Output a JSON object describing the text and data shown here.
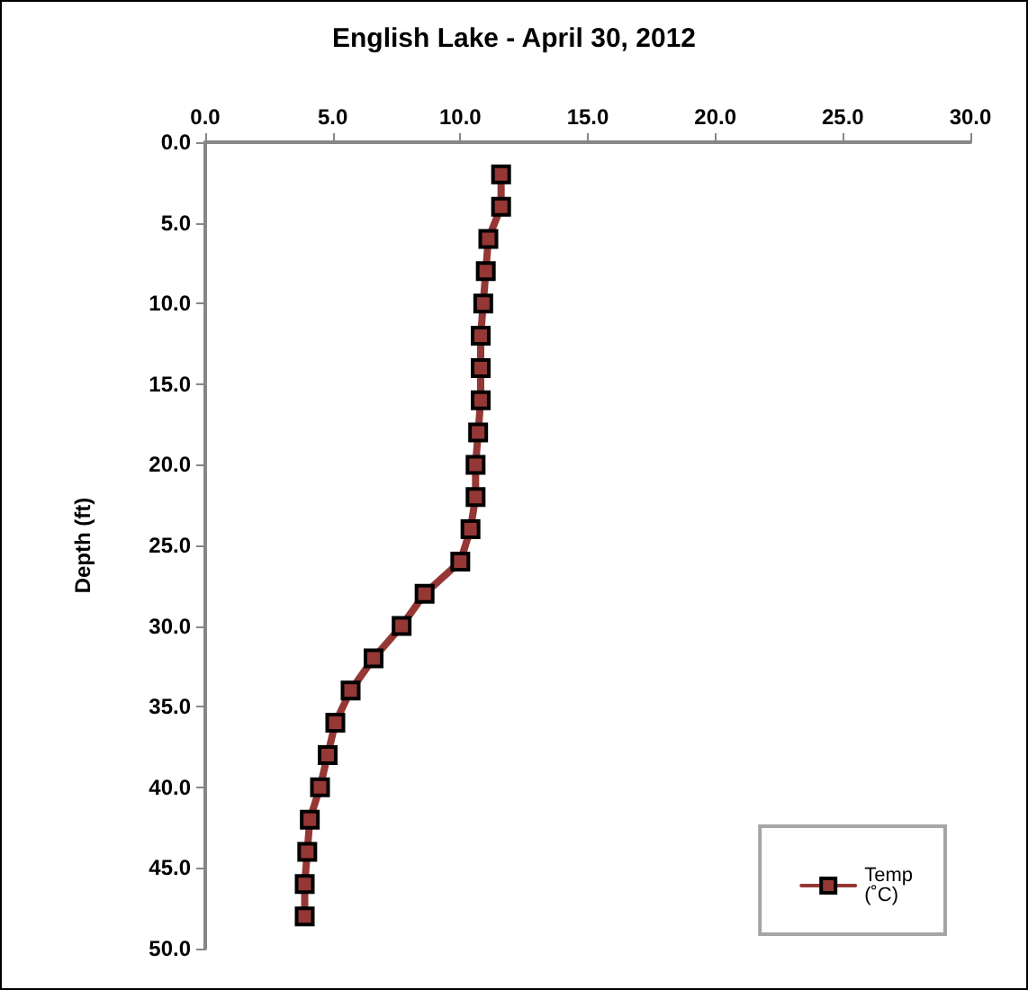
{
  "chart_data": {
    "type": "line",
    "title": "English Lake - April 30, 2012",
    "ylabel": "Depth (ft)",
    "xlim": [
      0,
      30
    ],
    "xticks": [
      {
        "value": 0,
        "label": "0.0"
      },
      {
        "value": 5,
        "label": "5.0"
      },
      {
        "value": 10,
        "label": "10.0"
      },
      {
        "value": 15,
        "label": "15.0"
      },
      {
        "value": 20,
        "label": "20.0"
      },
      {
        "value": 25,
        "label": "25.0"
      },
      {
        "value": 30,
        "label": "30.0"
      }
    ],
    "ylim": [
      50,
      0
    ],
    "yticks": [
      {
        "value": 0,
        "label": "0.0"
      },
      {
        "value": 5,
        "label": "5.0"
      },
      {
        "value": 10,
        "label": "10.0"
      },
      {
        "value": 15,
        "label": "15.0"
      },
      {
        "value": 20,
        "label": "20.0"
      },
      {
        "value": 25,
        "label": "25.0"
      },
      {
        "value": 30,
        "label": "30.0"
      },
      {
        "value": 35,
        "label": "35.0"
      },
      {
        "value": 40,
        "label": "40.0"
      },
      {
        "value": 45,
        "label": "45.0"
      },
      {
        "value": 50,
        "label": "50.0"
      }
    ],
    "series": [
      {
        "name": "Temp (˚C)",
        "color": "#953735",
        "x": [
          11.6,
          11.6,
          11.1,
          11.0,
          10.9,
          10.8,
          10.8,
          10.8,
          10.7,
          10.6,
          10.6,
          10.4,
          10.0,
          8.6,
          7.7,
          6.6,
          5.7,
          5.1,
          4.8,
          4.5,
          4.1,
          4.0,
          3.9,
          3.9
        ],
        "values": [
          2,
          4,
          6,
          8,
          10,
          12,
          14,
          16,
          18,
          20,
          22,
          24,
          26,
          28,
          30,
          32,
          34,
          36,
          38,
          40,
          42,
          44,
          46,
          48
        ]
      }
    ],
    "marker": "square",
    "line_style": "solid",
    "grid": false,
    "legend": "bottom right"
  }
}
